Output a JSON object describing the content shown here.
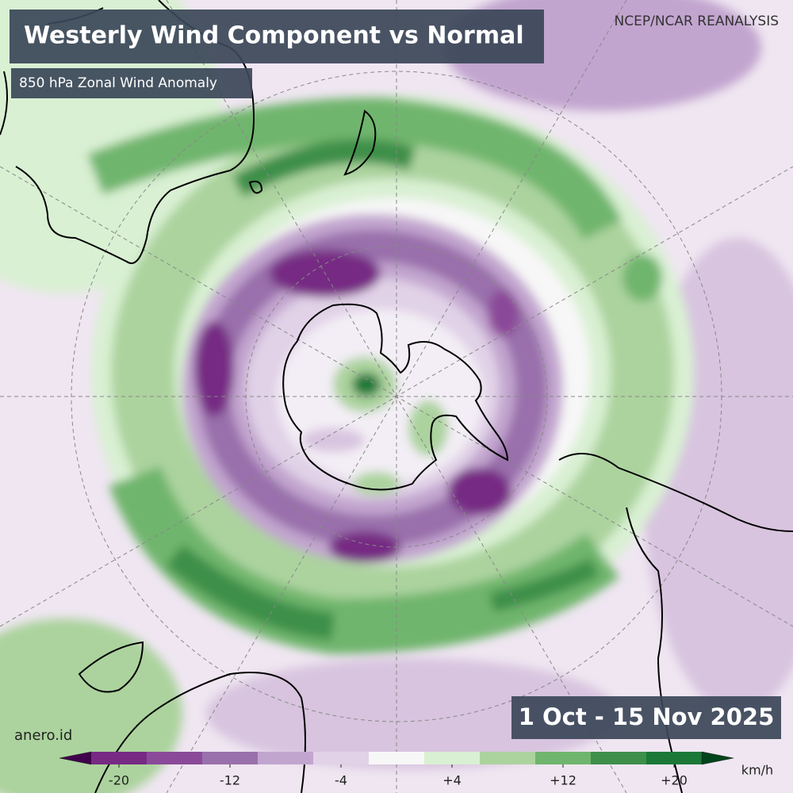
{
  "header": {
    "title": "Westerly Wind Component vs Normal",
    "subtitle": "850 hPa Zonal Wind Anomaly",
    "source": "NCEP/NCAR REANALYSIS"
  },
  "period": "1 Oct - 15 Nov 2025",
  "credit": "anero.id",
  "colorbar": {
    "levels": [
      -22,
      -18,
      -14,
      -10,
      -6,
      -2,
      2,
      6,
      10,
      14,
      18,
      22
    ],
    "colors": [
      "#40004b",
      "#762a83",
      "#8b4a99",
      "#9970ab",
      "#c2a5cf",
      "#e1d2e7",
      "#f7f7f7",
      "#d9f0d3",
      "#acd39e",
      "#6fb56d",
      "#3d8f4a",
      "#1b7837",
      "#00441b"
    ],
    "ticks": [
      -20,
      -12,
      -4,
      {
        "value": 4,
        "label": "+4"
      },
      {
        "value": 12,
        "label": "+12"
      },
      {
        "value": 20,
        "label": "+20"
      }
    ],
    "unit": "km/h"
  }
}
